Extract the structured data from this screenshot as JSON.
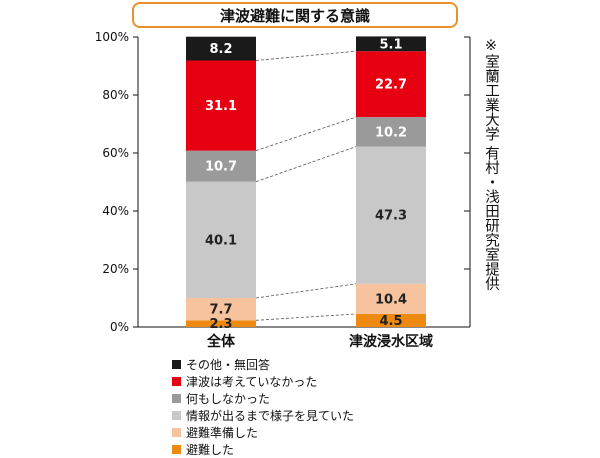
{
  "title": "津波避難に関する意識",
  "credit": "※室蘭工業大学 有村・浅田研究室提供",
  "chart_data": {
    "type": "bar",
    "stacked": true,
    "categories": [
      "全体",
      "津波浸水区域"
    ],
    "ylim": [
      0,
      100
    ],
    "yticks": [
      "0%",
      "20%",
      "40%",
      "60%",
      "80%",
      "100%"
    ],
    "series": [
      {
        "name": "避難した",
        "values": [
          2.3,
          4.5
        ],
        "color": "#ef8a10",
        "value_labels": [
          "2.3",
          "4.5"
        ]
      },
      {
        "name": "避難準備した",
        "values": [
          7.7,
          10.4
        ],
        "color": "#f7c39e",
        "value_labels": [
          "7.7",
          "10.4"
        ]
      },
      {
        "name": "情報が出るまで様子を見ていた",
        "values": [
          40.1,
          47.3
        ],
        "color": "#c8c8c8",
        "value_labels": [
          "40.1",
          "47.3"
        ]
      },
      {
        "name": "何もしなかった",
        "values": [
          10.7,
          10.2
        ],
        "color": "#9a9a9a",
        "value_labels": [
          "10.7",
          "10.2"
        ]
      },
      {
        "name": "津波は考えていなかった",
        "values": [
          31.1,
          22.7
        ],
        "color": "#e60012",
        "value_labels": [
          "31.1",
          "22.7"
        ]
      },
      {
        "name": "その他・無回答",
        "values": [
          8.2,
          5.1
        ],
        "color": "#1a1a1a",
        "value_labels": [
          "8.2",
          "5.1"
        ]
      }
    ],
    "legend_order": [
      "その他・無回答",
      "津波は考えていなかった",
      "何もしなかった",
      "情報が出るまで様子を見ていた",
      "避難準備した",
      "避難した"
    ],
    "legend": "bottom",
    "grid": false
  }
}
